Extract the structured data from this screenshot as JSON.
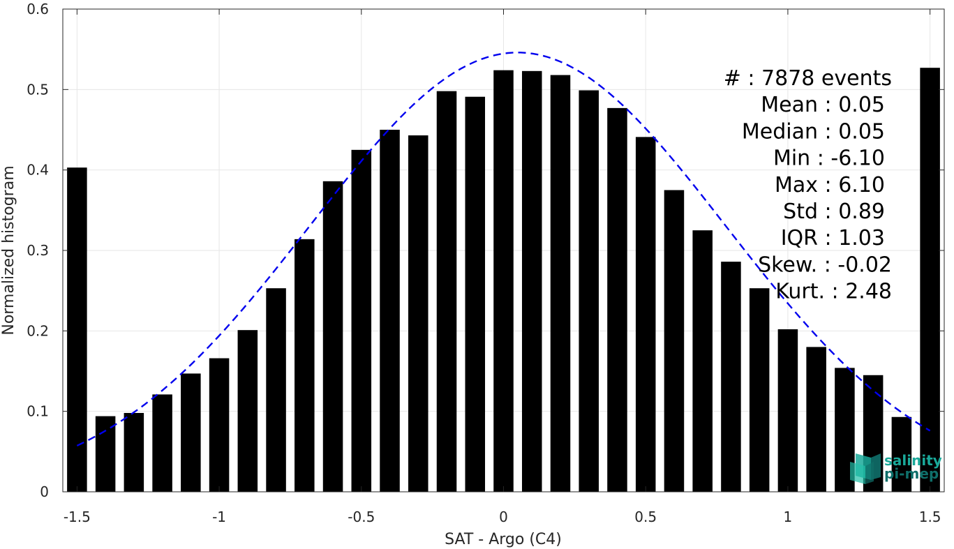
{
  "chart_data": {
    "type": "bar",
    "xlabel": "SAT - Argo (C4)",
    "ylabel": "Normalized histogram",
    "xlim": [
      -1.55,
      1.55
    ],
    "ylim": [
      0,
      0.6
    ],
    "grid": true,
    "x_ticks": [
      {
        "value": -1.5,
        "label": "-1.5"
      },
      {
        "value": -1,
        "label": "-1"
      },
      {
        "value": -0.5,
        "label": "-0.5"
      },
      {
        "value": 0,
        "label": "0"
      },
      {
        "value": 0.5,
        "label": "0.5"
      },
      {
        "value": 1,
        "label": "1"
      },
      {
        "value": 1.5,
        "label": "1.5"
      }
    ],
    "y_ticks": [
      {
        "value": 0,
        "label": "0"
      },
      {
        "value": 0.1,
        "label": "0.1"
      },
      {
        "value": 0.2,
        "label": "0.2"
      },
      {
        "value": 0.3,
        "label": "0.3"
      },
      {
        "value": 0.4,
        "label": "0.4"
      },
      {
        "value": 0.5,
        "label": "0.5"
      },
      {
        "value": 0.6,
        "label": "0.6"
      }
    ],
    "bar_color": "#000000",
    "bar_width": 0.07,
    "bars": {
      "x": [
        -1.5,
        -1.4,
        -1.3,
        -1.2,
        -1.1,
        -1.0,
        -0.9,
        -0.8,
        -0.7,
        -0.6,
        -0.5,
        -0.4,
        -0.3,
        -0.2,
        -0.1,
        0.0,
        0.1,
        0.2,
        0.3,
        0.4,
        0.5,
        0.6,
        0.7,
        0.8,
        0.9,
        1.0,
        1.1,
        1.2,
        1.3,
        1.4,
        1.5
      ],
      "values": [
        0.403,
        0.094,
        0.098,
        0.121,
        0.147,
        0.166,
        0.201,
        0.253,
        0.314,
        0.386,
        0.425,
        0.45,
        0.443,
        0.498,
        0.491,
        0.524,
        0.523,
        0.518,
        0.499,
        0.477,
        0.441,
        0.375,
        0.325,
        0.286,
        0.253,
        0.202,
        0.18,
        0.154,
        0.145,
        0.093,
        0.527
      ]
    },
    "fit_curve": {
      "style": "dashed",
      "color": "#0000ee",
      "mean": 0.05,
      "std": 0.73,
      "peak": 0.546,
      "x_range": [
        -1.5,
        1.5
      ]
    },
    "stats": [
      {
        "key": "count",
        "text": "#  : 7878 events"
      },
      {
        "key": "mean",
        "text": "Mean : 0.05"
      },
      {
        "key": "median",
        "text": "Median : 0.05"
      },
      {
        "key": "min",
        "text": "Min : -6.10"
      },
      {
        "key": "max",
        "text": "Max : 6.10"
      },
      {
        "key": "std",
        "text": "Std : 0.89"
      },
      {
        "key": "iqr",
        "text": "IQR : 1.03"
      },
      {
        "key": "skew",
        "text": "Skew. : -0.02"
      },
      {
        "key": "kurt",
        "text": "Kurt. : 2.48"
      }
    ]
  },
  "logo": {
    "line1": "salinity",
    "line2": "pi-mep",
    "color": "#1aa99a",
    "dark_color": "#0f6f6a"
  }
}
